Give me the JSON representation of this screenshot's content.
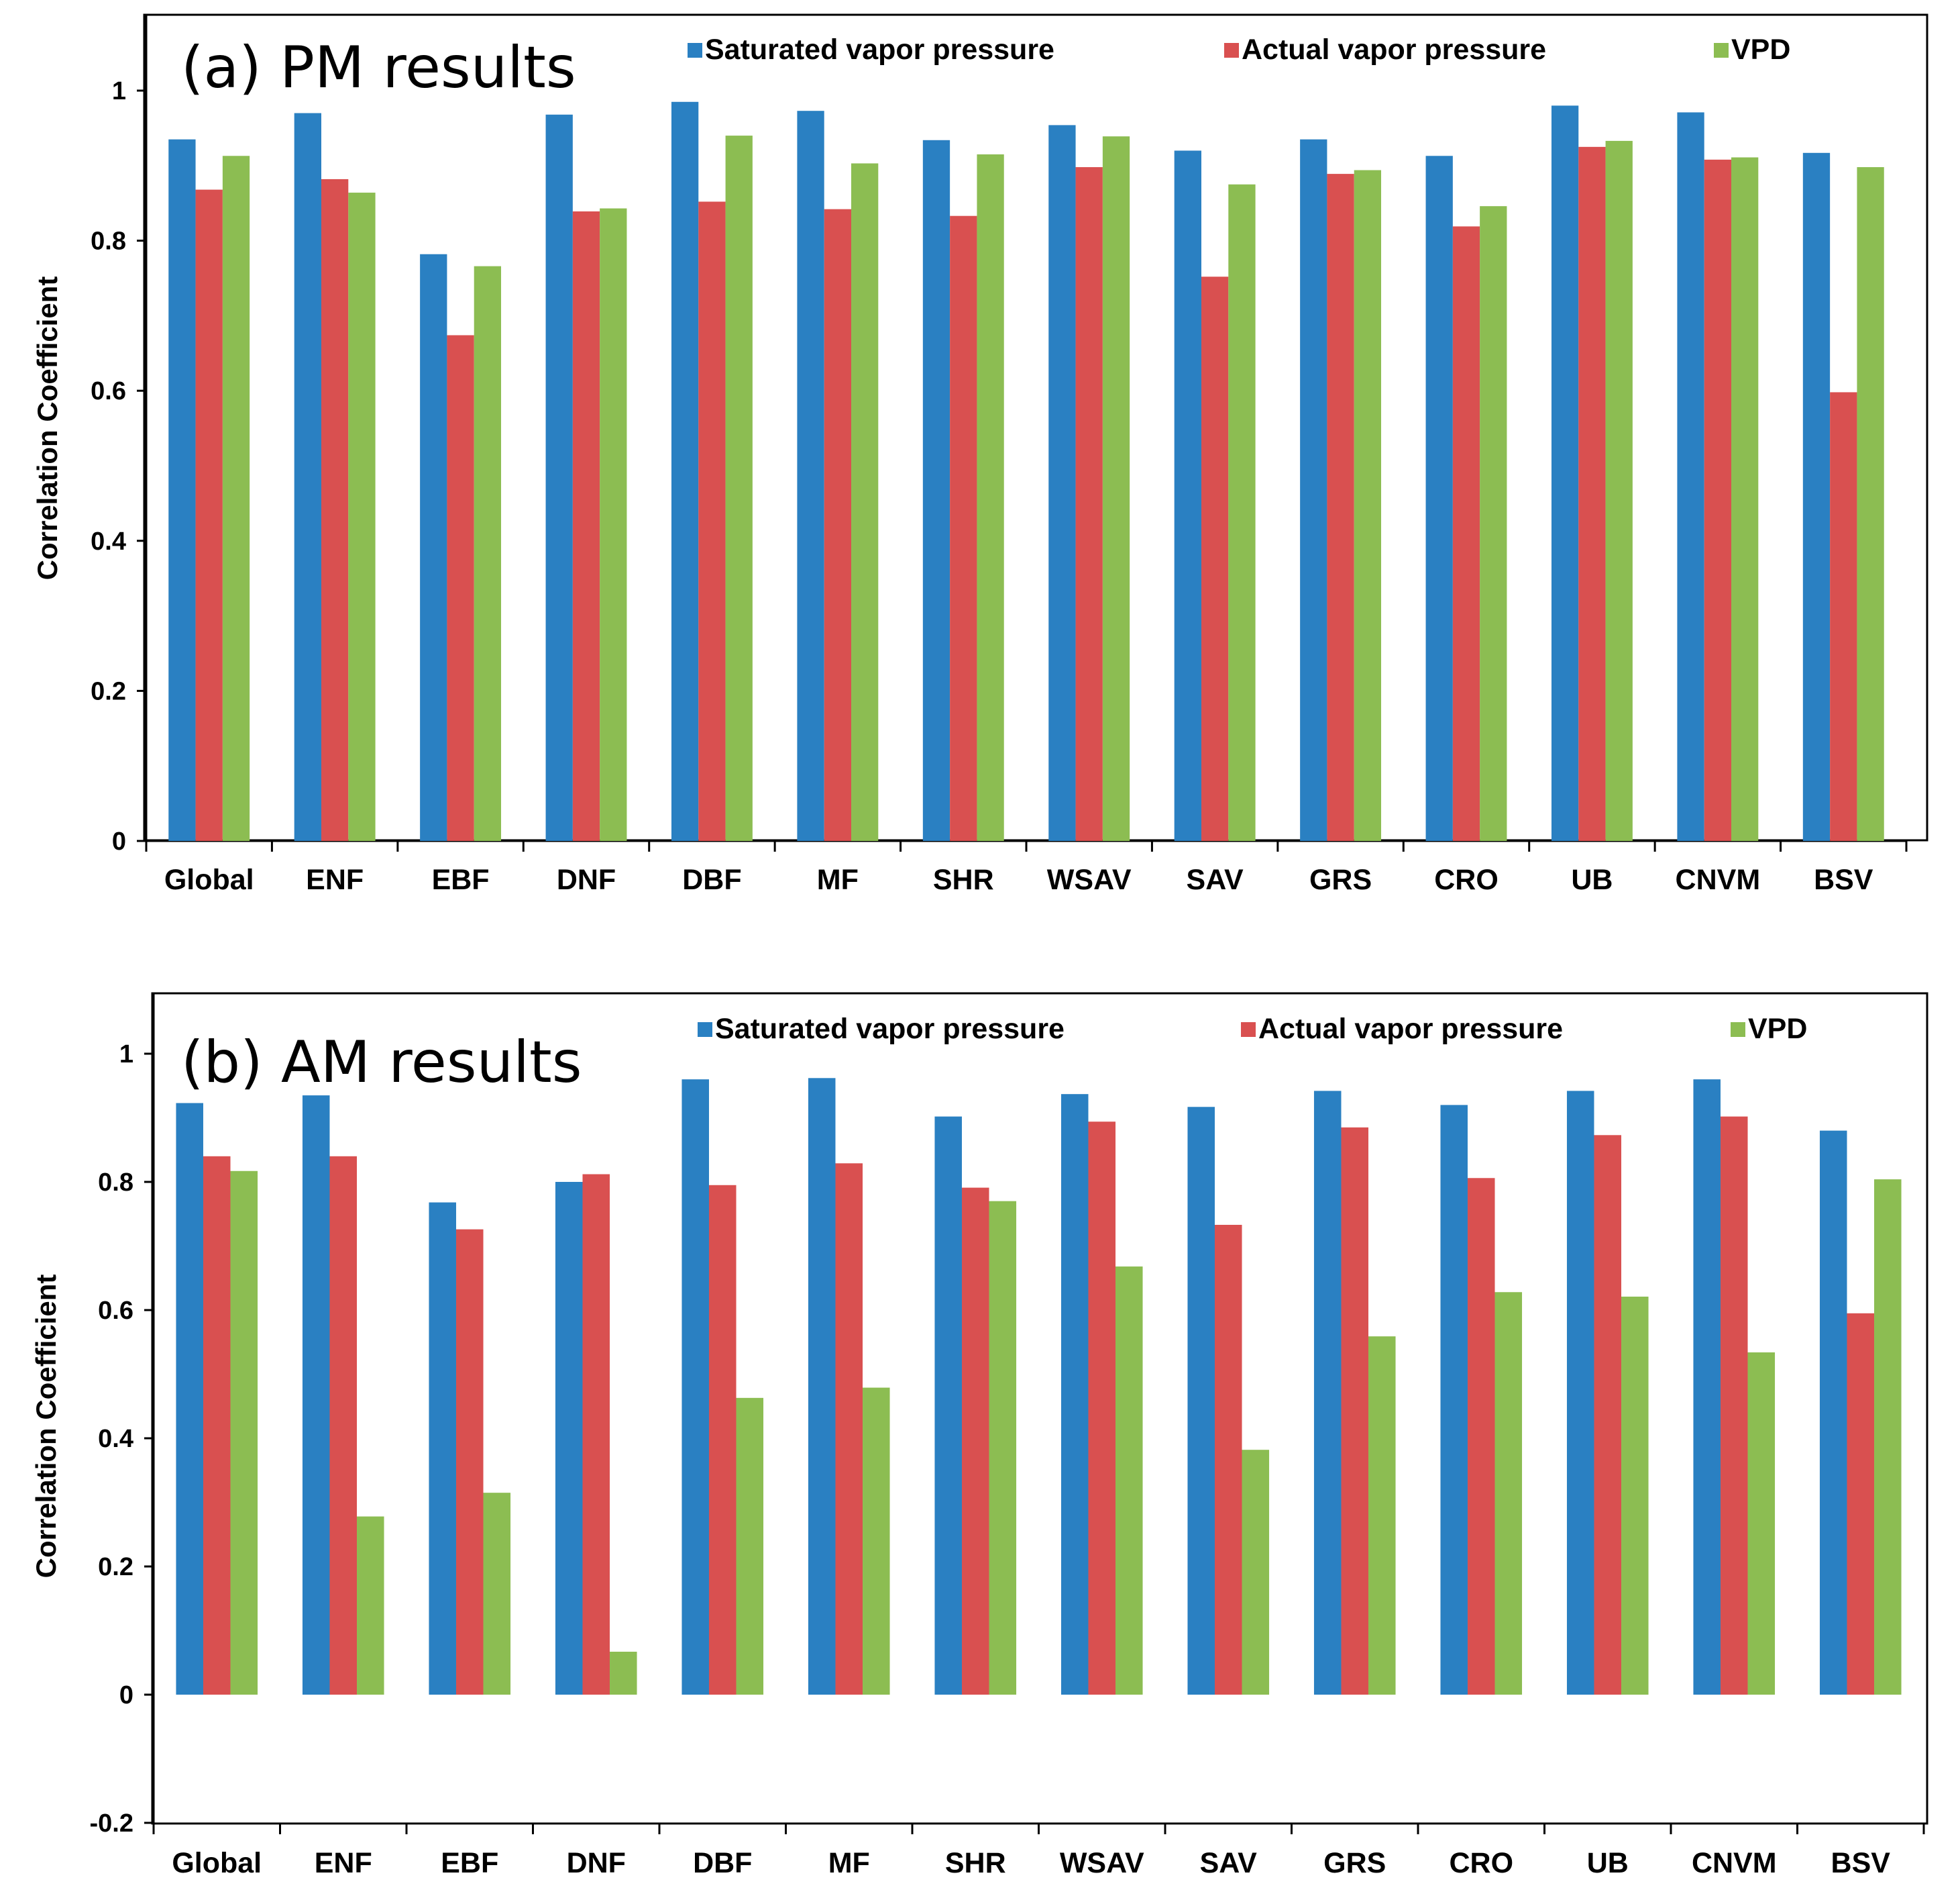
{
  "chart_data": [
    {
      "type": "bar",
      "title": "(a)  PM results",
      "xlabel": "",
      "ylabel": "Correlation Coefficient",
      "ylim": [
        0,
        1.1
      ],
      "yticks": [
        0,
        0.2,
        0.4,
        0.6,
        0.8,
        1
      ],
      "ytick_labels": [
        "0",
        "0.2",
        "0.4",
        "0.6",
        "0.8",
        "1"
      ],
      "legend_position": "top",
      "categories": [
        "Global",
        "ENF",
        "EBF",
        "DNF",
        "DBF",
        "MF",
        "SHR",
        "WSAV",
        "SAV",
        "GRS",
        "CRO",
        "UB",
        "CNVM",
        "BSV"
      ],
      "series": [
        {
          "name": "Saturated vapor pressure",
          "color": "#2a80c2",
          "values": [
            0.935,
            0.97,
            0.782,
            0.968,
            0.985,
            0.973,
            0.934,
            0.954,
            0.92,
            0.935,
            0.913,
            0.98,
            0.971,
            0.917
          ]
        },
        {
          "name": "Actual vapor pressure",
          "color": "#d95050",
          "values": [
            0.868,
            0.882,
            0.674,
            0.839,
            0.852,
            0.842,
            0.833,
            0.898,
            0.752,
            0.889,
            0.819,
            0.925,
            0.908,
            0.598
          ]
        },
        {
          "name": "VPD",
          "color": "#8cbd52",
          "values": [
            0.913,
            0.864,
            0.766,
            0.843,
            0.94,
            0.903,
            0.915,
            0.939,
            0.875,
            0.894,
            0.846,
            0.933,
            0.911,
            0.898
          ]
        }
      ]
    },
    {
      "type": "bar",
      "title": "(b)  AM results",
      "xlabel": "",
      "ylabel": "Correlation Coefficient",
      "ylim": [
        -0.2,
        1.1
      ],
      "yticks": [
        -0.2,
        0,
        0.2,
        0.4,
        0.6,
        0.8,
        1
      ],
      "ytick_labels": [
        "-0.2",
        "0",
        "0.2",
        "0.4",
        "0.6",
        "0.8",
        "1"
      ],
      "legend_position": "top",
      "categories": [
        "Global",
        "ENF",
        "EBF",
        "DNF",
        "DBF",
        "MF",
        "SHR",
        "WSAV",
        "SAV",
        "GRS",
        "CRO",
        "UB",
        "CNVM",
        "BSV"
      ],
      "series": [
        {
          "name": "Saturated vapor pressure",
          "color": "#2a80c2",
          "values": [
            0.923,
            0.935,
            0.768,
            0.8,
            0.96,
            0.962,
            0.902,
            0.937,
            0.917,
            0.942,
            0.92,
            0.942,
            0.96,
            0.88
          ]
        },
        {
          "name": "Actual vapor pressure",
          "color": "#d95050",
          "values": [
            0.84,
            0.84,
            0.726,
            0.812,
            0.795,
            0.829,
            0.791,
            0.894,
            0.733,
            0.885,
            0.806,
            0.873,
            0.902,
            0.595
          ]
        },
        {
          "name": "VPD",
          "color": "#8cbd52",
          "values": [
            0.817,
            0.278,
            0.315,
            0.067,
            0.463,
            0.479,
            0.77,
            0.668,
            0.382,
            0.559,
            0.628,
            0.621,
            0.534,
            0.804
          ]
        }
      ]
    }
  ]
}
